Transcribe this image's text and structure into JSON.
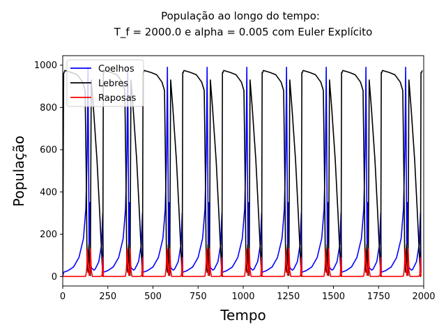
{
  "chart_data": {
    "type": "line",
    "title_line1": "População ao longo do tempo:",
    "title_line2": "T_f = 2000.0 e alpha = 0.005 com Euler Explícito",
    "xlabel": "Tempo",
    "ylabel": "População",
    "xlim": [
      0,
      2000
    ],
    "ylim": [
      -45,
      1045
    ],
    "xticks": [
      0,
      250,
      500,
      750,
      1000,
      1250,
      1500,
      1750,
      2000
    ],
    "yticks": [
      0,
      200,
      400,
      600,
      800,
      1000
    ],
    "grid": false,
    "legend_position": "top-left",
    "period": 220,
    "first_cycle_start": 5,
    "series": [
      {
        "name": "Coelhos",
        "color": "#0000ff",
        "points": [
          [
            0,
            0
          ],
          [
            5,
            20
          ],
          [
            30,
            28
          ],
          [
            60,
            45
          ],
          [
            90,
            90
          ],
          [
            115,
            180
          ],
          [
            128,
            320
          ],
          [
            136,
            600
          ],
          [
            140,
            990
          ],
          [
            143,
            600
          ],
          [
            146,
            150
          ],
          [
            150,
            350
          ],
          [
            154,
            60
          ],
          [
            160,
            40
          ],
          [
            172,
            30
          ],
          [
            180,
            35
          ],
          [
            200,
            70
          ],
          [
            215,
            150
          ],
          [
            222,
            300
          ],
          [
            225,
            25
          ]
        ]
      },
      {
        "name": "Lebres",
        "color": "#000000",
        "points": [
          [
            0,
            0
          ],
          [
            5,
            960
          ],
          [
            12,
            975
          ],
          [
            50,
            965
          ],
          [
            80,
            955
          ],
          [
            110,
            920
          ],
          [
            124,
            880
          ],
          [
            130,
            500
          ],
          [
            135,
            70
          ],
          [
            140,
            20
          ],
          [
            145,
            150
          ],
          [
            149,
            50
          ],
          [
            153,
            5
          ],
          [
            158,
            930
          ],
          [
            170,
            800
          ],
          [
            190,
            550
          ],
          [
            205,
            300
          ],
          [
            215,
            120
          ],
          [
            222,
            0
          ],
          [
            225,
            965
          ]
        ]
      },
      {
        "name": "Raposas",
        "color": "#ff0000",
        "points": [
          [
            0,
            0
          ],
          [
            5,
            0
          ],
          [
            120,
            0
          ],
          [
            128,
            2
          ],
          [
            133,
            40
          ],
          [
            137,
            130
          ],
          [
            141,
            60
          ],
          [
            146,
            5
          ],
          [
            150,
            10
          ],
          [
            154,
            130
          ],
          [
            158,
            30
          ],
          [
            164,
            0
          ],
          [
            210,
            0
          ],
          [
            218,
            5
          ],
          [
            222,
            90
          ],
          [
            225,
            0
          ]
        ]
      }
    ]
  }
}
